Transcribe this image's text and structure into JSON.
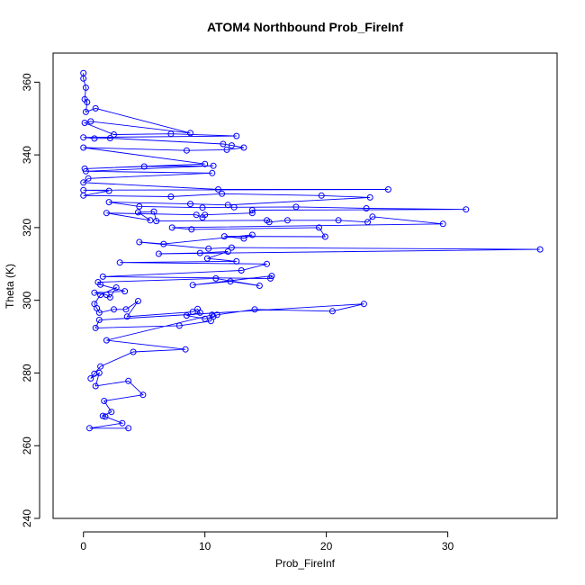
{
  "chart_data": {
    "type": "scatter",
    "title": "ATOM4 Northbound Prob_FireInf",
    "xlabel": "Prob_FireInf",
    "ylabel": "Theta (K)",
    "xlim": [
      -2.5,
      39
    ],
    "ylim": [
      240,
      368
    ],
    "x_ticks": [
      "0",
      "10",
      "20",
      "30"
    ],
    "y_ticks": [
      "240",
      "260",
      "280",
      "300",
      "320",
      "340",
      "360"
    ],
    "grid": false,
    "legend": "none",
    "style": "connected points (line + open circle markers)",
    "series": [
      {
        "color": "#0000ff",
        "points": [
          [
            0.0,
            362.5
          ],
          [
            0.0,
            361.0
          ],
          [
            0.2,
            358.5
          ],
          [
            0.1,
            355.3
          ],
          [
            0.3,
            354.5
          ],
          [
            0.2,
            351.8
          ],
          [
            1.0,
            352.8
          ],
          [
            8.8,
            346.0
          ],
          [
            0.6,
            349.2
          ],
          [
            0.1,
            348.8
          ],
          [
            2.5,
            345.6
          ],
          [
            7.2,
            345.8
          ],
          [
            12.6,
            345.2
          ],
          [
            0.0,
            344.8
          ],
          [
            0.9,
            344.5
          ],
          [
            2.2,
            344.6
          ],
          [
            11.5,
            343.0
          ],
          [
            12.2,
            342.6
          ],
          [
            13.2,
            342.0
          ],
          [
            11.8,
            341.4
          ],
          [
            8.5,
            341.2
          ],
          [
            0.0,
            342.0
          ],
          [
            10.0,
            337.5
          ],
          [
            0.1,
            336.2
          ],
          [
            5.0,
            336.8
          ],
          [
            10.7,
            337.0
          ],
          [
            0.2,
            335.5
          ],
          [
            10.6,
            335.0
          ],
          [
            0.4,
            333.5
          ],
          [
            0.0,
            332.4
          ],
          [
            11.1,
            330.5
          ],
          [
            25.1,
            330.5
          ],
          [
            0.0,
            330.3
          ],
          [
            2.1,
            330.1
          ],
          [
            0.0,
            328.8
          ],
          [
            7.2,
            328.5
          ],
          [
            11.4,
            329.3
          ],
          [
            19.6,
            328.8
          ],
          [
            23.6,
            328.3
          ],
          [
            11.9,
            326.2
          ],
          [
            8.8,
            326.5
          ],
          [
            2.1,
            327.0
          ],
          [
            4.6,
            325.8
          ],
          [
            9.8,
            325.5
          ],
          [
            12.4,
            325.6
          ],
          [
            17.5,
            325.7
          ],
          [
            23.3,
            325.3
          ],
          [
            31.5,
            325.0
          ],
          [
            13.9,
            324.8
          ],
          [
            13.9,
            324.0
          ],
          [
            10.0,
            323.5
          ],
          [
            9.8,
            322.8
          ],
          [
            9.3,
            323.5
          ],
          [
            1.9,
            324.0
          ],
          [
            5.5,
            322.0
          ],
          [
            4.5,
            324.2
          ],
          [
            5.8,
            324.4
          ],
          [
            6.0,
            321.8
          ],
          [
            15.1,
            322.0
          ],
          [
            15.3,
            321.5
          ],
          [
            16.8,
            322.0
          ],
          [
            21.0,
            322.0
          ],
          [
            23.4,
            321.5
          ],
          [
            23.8,
            323.0
          ],
          [
            29.6,
            321.0
          ],
          [
            7.3,
            320.0
          ],
          [
            8.9,
            319.5
          ],
          [
            19.4,
            320.0
          ],
          [
            19.9,
            317.5
          ],
          [
            11.6,
            317.6
          ],
          [
            13.2,
            317.0
          ],
          [
            13.9,
            318.0
          ],
          [
            6.6,
            315.5
          ],
          [
            4.6,
            316.0
          ],
          [
            10.3,
            314.2
          ],
          [
            12.2,
            314.5
          ],
          [
            37.6,
            314.0
          ],
          [
            6.2,
            312.8
          ],
          [
            9.6,
            313.0
          ],
          [
            11.9,
            313.4
          ],
          [
            10.2,
            311.5
          ],
          [
            12.6,
            310.7
          ],
          [
            3.0,
            310.4
          ],
          [
            15.1,
            310.0
          ],
          [
            13.0,
            308.2
          ],
          [
            1.6,
            306.5
          ],
          [
            15.4,
            306.0
          ],
          [
            15.5,
            306.7
          ],
          [
            9.0,
            304.2
          ],
          [
            12.1,
            305.2
          ],
          [
            14.5,
            304.0
          ],
          [
            10.9,
            306.0
          ],
          [
            1.2,
            305.0
          ],
          [
            1.4,
            304.3
          ],
          [
            3.4,
            302.5
          ],
          [
            0.9,
            302.1
          ],
          [
            1.9,
            301.5
          ],
          [
            2.2,
            300.8
          ],
          [
            2.7,
            303.5
          ],
          [
            1.4,
            301.5
          ],
          [
            0.9,
            299.0
          ],
          [
            1.1,
            297.8
          ],
          [
            1.3,
            296.6
          ],
          [
            2.5,
            297.5
          ],
          [
            3.5,
            297.5
          ],
          [
            4.5,
            299.8
          ],
          [
            3.6,
            295.5
          ],
          [
            9.0,
            296.8
          ],
          [
            9.4,
            297.6
          ],
          [
            9.6,
            296.6
          ],
          [
            8.5,
            295.8
          ],
          [
            10.0,
            294.9
          ],
          [
            10.7,
            295.5
          ],
          [
            11.0,
            296.0
          ],
          [
            14.1,
            297.5
          ],
          [
            20.5,
            297.0
          ],
          [
            23.1,
            299.0
          ],
          [
            1.3,
            294.6
          ],
          [
            1.0,
            292.4
          ],
          [
            7.9,
            293.0
          ],
          [
            10.5,
            294.3
          ],
          [
            10.6,
            296.0
          ],
          [
            1.9,
            289.0
          ],
          [
            8.4,
            286.5
          ],
          [
            4.1,
            285.8
          ],
          [
            1.4,
            281.8
          ],
          [
            0.9,
            279.8
          ],
          [
            0.6,
            278.5
          ],
          [
            1.3,
            280.0
          ],
          [
            1.0,
            276.4
          ],
          [
            3.7,
            277.8
          ],
          [
            4.9,
            274.0
          ],
          [
            1.7,
            272.3
          ],
          [
            2.3,
            269.3
          ],
          [
            1.6,
            268.2
          ],
          [
            1.8,
            268.0
          ],
          [
            3.2,
            266.2
          ],
          [
            0.5,
            264.8
          ],
          [
            3.7,
            264.8
          ]
        ]
      }
    ]
  }
}
